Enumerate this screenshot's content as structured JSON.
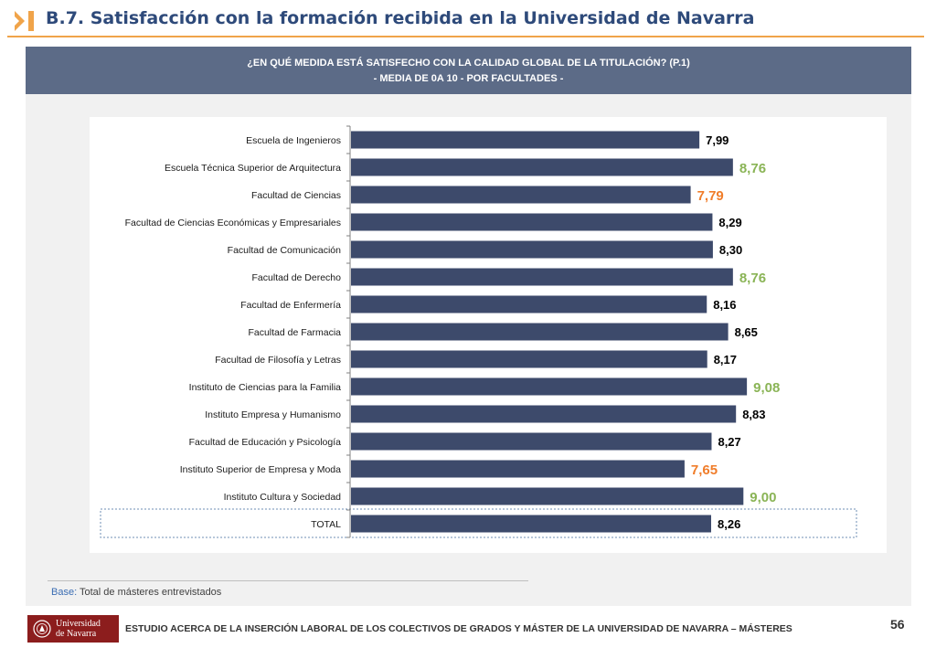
{
  "header": {
    "title": "B.7. Satisfacción con la formación recibida en la Universidad de Navarra",
    "icon": "double-chevron-icon",
    "accent_color": "#f0a44a",
    "title_color": "#2e4a7a"
  },
  "question": {
    "line1": "¿EN QUÉ MEDIDA ESTÁ SATISFECHO CON LA CALIDAD GLOBAL DE LA TITULACIÓN? (P.1)",
    "line2": "-  MEDIA DE 0A 10 - POR FACULTADES -",
    "background": "#5c6b87"
  },
  "chart_data": {
    "type": "bar",
    "orientation": "horizontal",
    "categories": [
      "Escuela de Ingenieros",
      "Escuela Técnica Superior de Arquitectura",
      "Facultad de Ciencias",
      "Facultad de Ciencias Económicas y Empresariales",
      "Facultad de Comunicación",
      "Facultad de Derecho",
      "Facultad de Enfermería",
      "Facultad de Farmacia",
      "Facultad de Filosofía y Letras",
      "Instituto de Ciencias para la Familia",
      "Instituto Empresa y Humanismo",
      "Facultad de Educación y Psicología",
      "Instituto Superior de Empresa y Moda",
      "Instituto Cultura y Sociedad",
      "TOTAL"
    ],
    "values": [
      7.99,
      8.76,
      7.79,
      8.29,
      8.3,
      8.76,
      8.16,
      8.65,
      8.17,
      9.08,
      8.83,
      8.27,
      7.65,
      9.0,
      8.26
    ],
    "value_labels": [
      "7,99",
      "8,76",
      "7,79",
      "8,29",
      "8,30",
      "8,76",
      "8,16",
      "8,65",
      "8,17",
      "9,08",
      "8,83",
      "8,27",
      "7,65",
      "9,00",
      "8,26"
    ],
    "highlight": [
      "none",
      "high",
      "low",
      "none",
      "none",
      "high",
      "none",
      "none",
      "none",
      "high",
      "none",
      "none",
      "low",
      "high",
      "none"
    ],
    "xlim": [
      0,
      10
    ],
    "bar_color": "#3d4a6b",
    "label_colors": {
      "none": "#000000",
      "high": "#8ab456",
      "low": "#f07d2a"
    },
    "grid": false,
    "title": "",
    "xlabel": "",
    "ylabel": ""
  },
  "base_note": {
    "label": "Base:",
    "text": " Total de másteres entrevistados"
  },
  "footer": {
    "logo_line1": "Universidad",
    "logo_line2": "de Navarra",
    "logo_color": "#8c1d1d",
    "text": "ESTUDIO ACERCA DE LA INSERCIÓN LABORAL DE LOS COLECTIVOS DE GRADOS Y MÁSTER DE LA UNIVERSIDAD DE NAVARRA – MÁSTERES",
    "page_number": "56"
  }
}
